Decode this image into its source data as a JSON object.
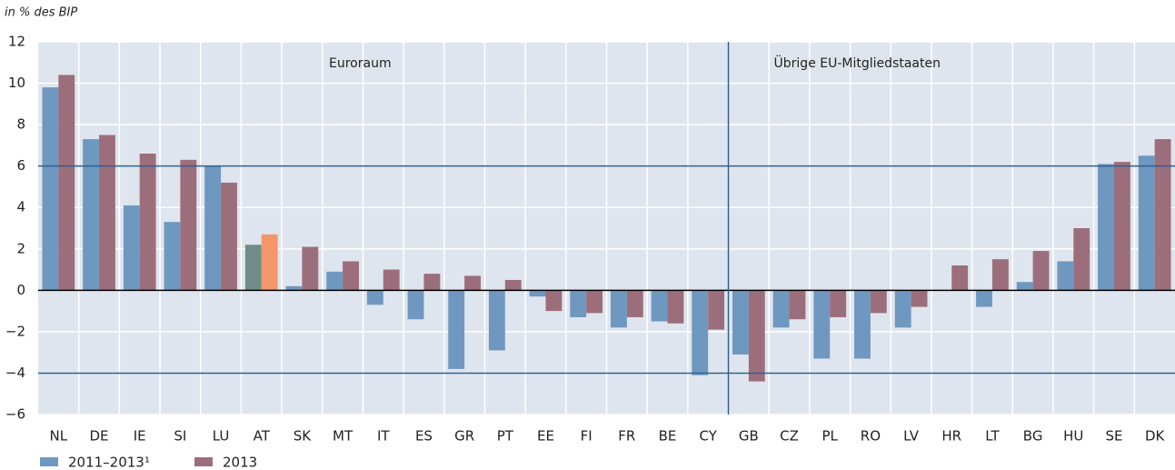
{
  "chart_data": {
    "type": "bar",
    "y_label": "in % des BIP",
    "categories": [
      "NL",
      "DE",
      "IE",
      "SI",
      "LU",
      "AT",
      "SK",
      "MT",
      "IT",
      "ES",
      "GR",
      "PT",
      "EE",
      "FI",
      "FR",
      "BE",
      "CY",
      "GB",
      "CZ",
      "PL",
      "RO",
      "LV",
      "HR",
      "LT",
      "BG",
      "HU",
      "SE",
      "DK"
    ],
    "series": [
      {
        "name": "2011–2013¹",
        "color": "#6f98c0",
        "values": [
          9.8,
          7.3,
          4.1,
          3.3,
          6.0,
          2.2,
          0.2,
          0.9,
          -0.7,
          -1.4,
          -3.8,
          -2.9,
          -0.3,
          -1.3,
          -1.8,
          -1.5,
          -4.1,
          -3.1,
          -1.8,
          -3.3,
          -3.3,
          -1.8,
          0.0,
          -0.8,
          0.4,
          1.4,
          6.1,
          6.5
        ]
      },
      {
        "name": "2013",
        "color": "#9c6e7c",
        "values": [
          10.4,
          7.5,
          6.6,
          6.3,
          5.2,
          2.7,
          2.1,
          1.4,
          1.0,
          0.8,
          0.7,
          0.5,
          -1.0,
          -1.1,
          -1.3,
          -1.6,
          -1.9,
          -4.4,
          -1.4,
          -1.3,
          -1.1,
          -0.8,
          1.2,
          1.5,
          1.9,
          3.0,
          6.2,
          7.3
        ]
      }
    ],
    "highlight": {
      "category": "AT",
      "colors": [
        "#6f8d86",
        "#f4956a"
      ]
    },
    "groups": [
      {
        "label": "Euroraum",
        "from": "NL",
        "to": "CY"
      },
      {
        "label": "Übrige EU-Mitgliedstaaten",
        "from": "GB",
        "to": "DK"
      }
    ],
    "reference_lines": [
      6,
      -4
    ],
    "ylim": [
      -6,
      12
    ],
    "yticks": [
      {
        "value": -6,
        "label": "−6"
      },
      {
        "value": -4,
        "label": "−4"
      },
      {
        "value": -2,
        "label": "−2"
      },
      0,
      2,
      4,
      6,
      8,
      10,
      12
    ],
    "grid": true,
    "legend": "bottom-left"
  }
}
